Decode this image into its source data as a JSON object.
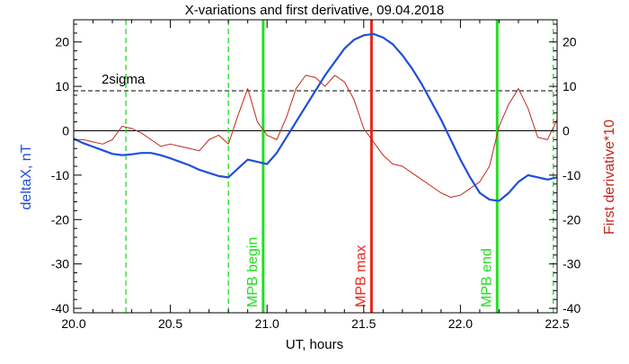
{
  "chart_data": {
    "type": "line",
    "title": "X-variations and first derivative, 09.04.2018",
    "xlabel": "UT, hours",
    "ylabel_left": "deltaX, nT",
    "ylabel_right": "First derivative*10",
    "xlim": [
      20.0,
      22.5
    ],
    "ylim": [
      -41,
      25
    ],
    "x_ticks": [
      "20.0",
      "20.5",
      "21.0",
      "21.5",
      "22.0",
      "22.5"
    ],
    "y_ticks": [
      "20",
      "10",
      "0",
      "-10",
      "-20",
      "-30",
      "-40"
    ],
    "sigma_label": "2sigma",
    "sigma_level": 9,
    "colors": {
      "deltaX": "#1f4fd8",
      "derivative": "#c0281c",
      "mpb": "#22dd22",
      "max": "#e8281c",
      "axis": "#000000",
      "left_label": "#1f4fd8",
      "right_label": "#c0281c"
    },
    "series": [
      {
        "name": "deltaX, nT",
        "x": [
          20.0,
          20.05,
          20.1,
          20.15,
          20.2,
          20.25,
          20.3,
          20.35,
          20.4,
          20.45,
          20.5,
          20.55,
          20.6,
          20.65,
          20.7,
          20.75,
          20.8,
          20.85,
          20.9,
          20.95,
          21.0,
          21.05,
          21.1,
          21.15,
          21.2,
          21.25,
          21.3,
          21.35,
          21.4,
          21.45,
          21.5,
          21.55,
          21.6,
          21.65,
          21.7,
          21.75,
          21.8,
          21.85,
          21.9,
          21.95,
          22.0,
          22.05,
          22.1,
          22.15,
          22.2,
          22.25,
          22.3,
          22.35,
          22.4,
          22.45,
          22.5
        ],
        "values": [
          -1.8,
          -2.8,
          -3.6,
          -4.4,
          -5.2,
          -5.5,
          -5.3,
          -5.0,
          -5.0,
          -5.5,
          -6.2,
          -7.0,
          -7.8,
          -8.8,
          -9.5,
          -10.2,
          -10.5,
          -8.5,
          -6.5,
          -7.0,
          -7.5,
          -5.0,
          -1.5,
          2.0,
          5.5,
          9.0,
          12.5,
          15.5,
          18.5,
          20.5,
          21.5,
          21.8,
          21.0,
          19.5,
          17.0,
          14.0,
          10.5,
          6.5,
          2.5,
          -2.0,
          -6.5,
          -10.5,
          -14.0,
          -15.5,
          -15.8,
          -14.0,
          -11.5,
          -10.0,
          -10.5,
          -11.0,
          -10.5
        ]
      },
      {
        "name": "First derivative*10",
        "x": [
          20.0,
          20.05,
          20.1,
          20.15,
          20.2,
          20.25,
          20.3,
          20.35,
          20.4,
          20.45,
          20.5,
          20.55,
          20.6,
          20.65,
          20.7,
          20.75,
          20.8,
          20.85,
          20.9,
          20.95,
          21.0,
          21.05,
          21.1,
          21.15,
          21.2,
          21.25,
          21.3,
          21.35,
          21.4,
          21.45,
          21.5,
          21.55,
          21.6,
          21.65,
          21.7,
          21.75,
          21.8,
          21.85,
          21.9,
          21.95,
          22.0,
          22.05,
          22.1,
          22.15,
          22.2,
          22.25,
          22.3,
          22.35,
          22.4,
          22.45,
          22.5
        ],
        "values": [
          -2.0,
          -2.0,
          -2.5,
          -3.0,
          -2.0,
          1.0,
          0.5,
          -0.5,
          -2.0,
          -3.5,
          -3.0,
          -3.5,
          -4.0,
          -4.5,
          -2.0,
          -1.0,
          -3.0,
          3.5,
          9.5,
          2.0,
          -1.0,
          -2.0,
          3.0,
          9.5,
          12.5,
          12.0,
          10.0,
          12.5,
          11.0,
          7.0,
          0.5,
          -2.5,
          -5.5,
          -7.5,
          -8.0,
          -9.5,
          -11.0,
          -12.5,
          -14.0,
          -15.0,
          -14.5,
          -13.0,
          -11.5,
          -8.0,
          1.0,
          6.0,
          9.5,
          5.0,
          -1.5,
          -2.0,
          2.5
        ]
      }
    ],
    "reference_lines": [
      {
        "x": 20.27,
        "label": "",
        "style": "dashed",
        "color_key": "mpb"
      },
      {
        "x": 20.8,
        "label": "",
        "style": "dashed",
        "color_key": "mpb"
      },
      {
        "x": 20.98,
        "label": "MPB begin",
        "style": "solid",
        "color_key": "mpb"
      },
      {
        "x": 21.54,
        "label": "MPB max",
        "style": "solid",
        "color_key": "max"
      },
      {
        "x": 22.19,
        "label": "MPB end",
        "style": "solid",
        "color_key": "mpb"
      },
      {
        "x": 22.48,
        "label": "",
        "style": "dashed",
        "color_key": "mpb"
      }
    ]
  }
}
